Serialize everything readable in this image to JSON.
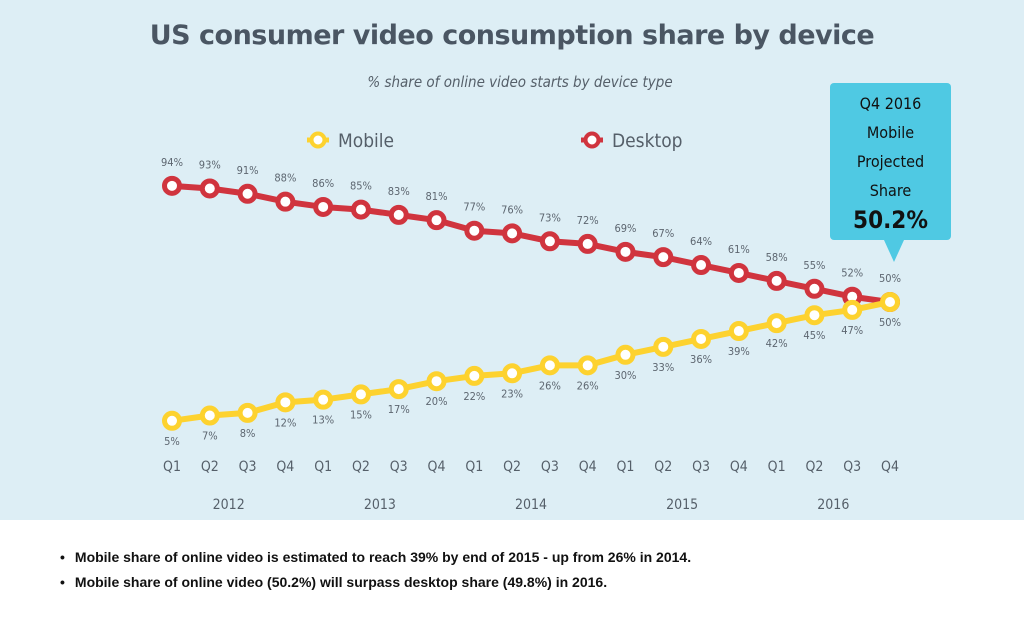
{
  "chart_data": {
    "type": "line",
    "title": "US consumer video consumption share by device",
    "subtitle": "% share of online video starts by device type",
    "x": [
      "Q1",
      "Q2",
      "Q3",
      "Q4",
      "Q1",
      "Q2",
      "Q3",
      "Q4",
      "Q1",
      "Q2",
      "Q3",
      "Q4",
      "Q1",
      "Q2",
      "Q3",
      "Q4",
      "Q1",
      "Q2",
      "Q3",
      "Q4"
    ],
    "years": [
      "2012",
      "2013",
      "2014",
      "2015",
      "2016"
    ],
    "series": [
      {
        "name": "Mobile",
        "color": "#fdd22f",
        "values": [
          5,
          7,
          8,
          12,
          13,
          15,
          17,
          20,
          22,
          23,
          26,
          26,
          30,
          33,
          36,
          39,
          42,
          45,
          47,
          50
        ]
      },
      {
        "name": "Desktop",
        "color": "#d0343e",
        "values": [
          94,
          93,
          91,
          88,
          86,
          85,
          83,
          81,
          77,
          76,
          73,
          72,
          69,
          67,
          64,
          61,
          58,
          55,
          52,
          50
        ]
      }
    ],
    "ylim": [
      0,
      100
    ],
    "grid": false,
    "legend_placement": "top-center",
    "value_suffix": "%"
  },
  "callout": {
    "line1": "Q4 2016",
    "line2": "Mobile",
    "line3": "Projected",
    "line4": "Share",
    "value": "50.2%",
    "color": "#4fc9e3"
  },
  "notes": [
    "Mobile share of online video is estimated to reach 39% by end of 2015 - up from 26% in 2014.",
    "Mobile share of online video (50.2%) will surpass desktop share (49.8%) in 2016."
  ]
}
